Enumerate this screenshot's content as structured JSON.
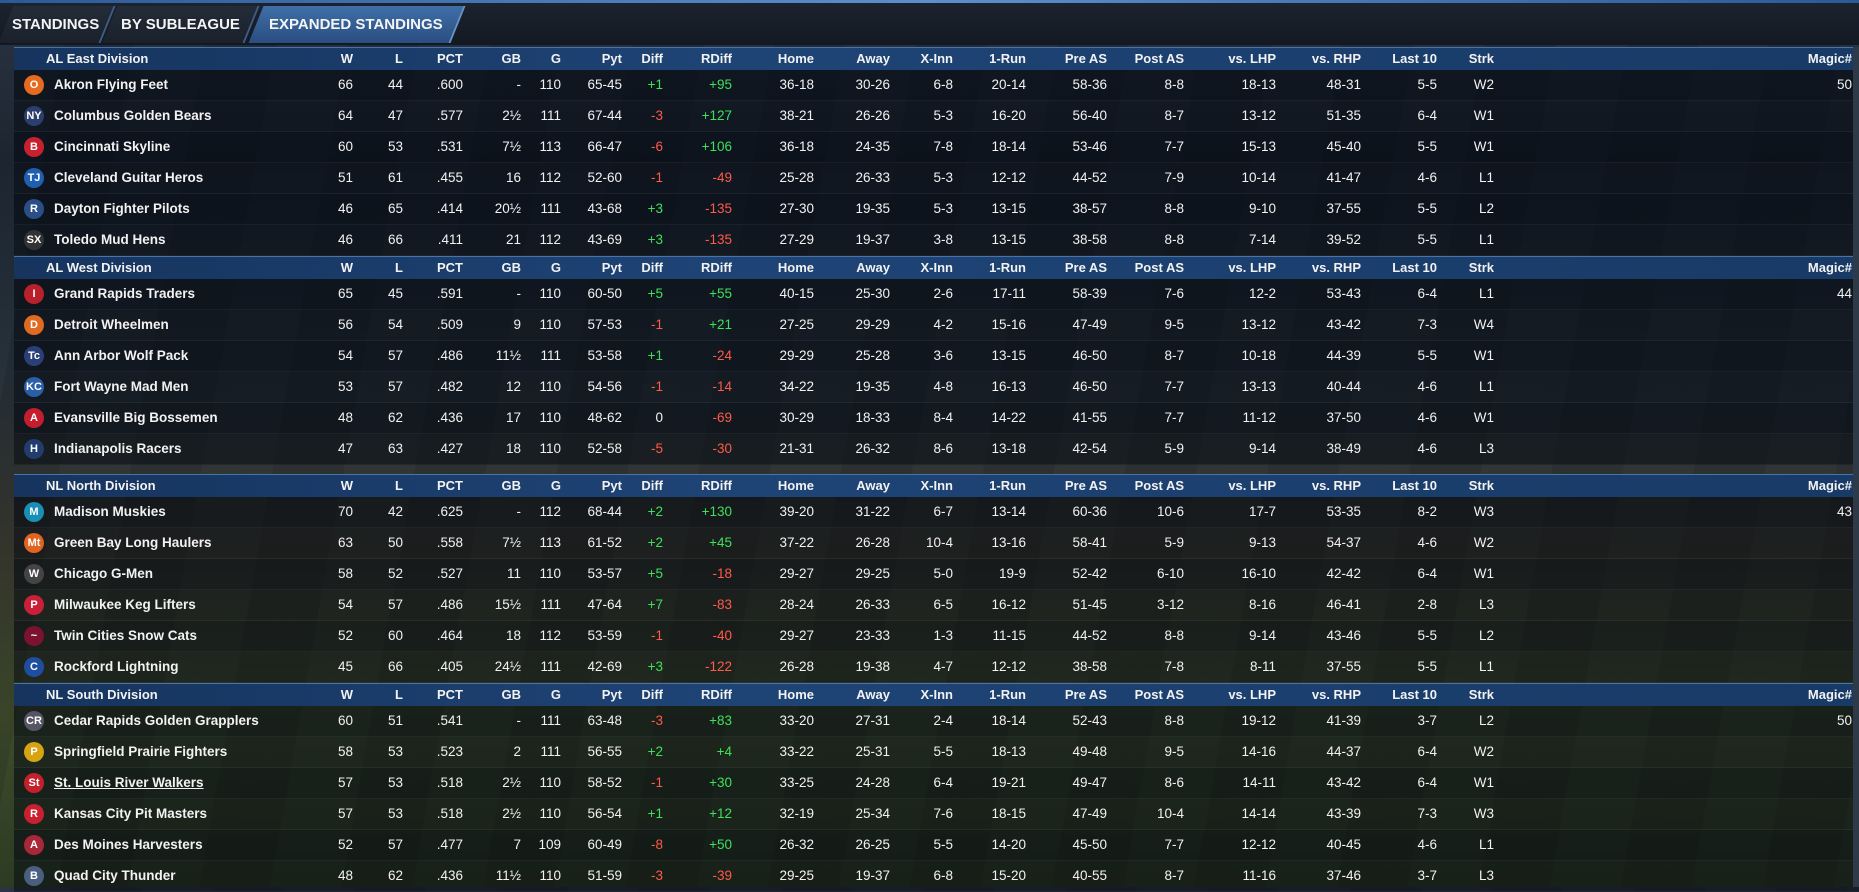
{
  "tabs": [
    "STANDINGS",
    "BY SUBLEAGUE",
    "EXPANDED STANDINGS"
  ],
  "columns": [
    "W",
    "L",
    "PCT",
    "GB",
    "G",
    "Pyt",
    "Diff",
    "RDiff",
    "Home",
    "Away",
    "X-Inn",
    "1-Run",
    "Pre AS",
    "Post AS",
    "vs. LHP",
    "vs. RHP",
    "Last 10",
    "Strk",
    "Magic#"
  ],
  "divisions": [
    {
      "name": "AL East Division",
      "teams": [
        {
          "logo": "orioles-logo",
          "abbr": "O",
          "color": "#e66a1f",
          "name": "Akron  Flying Feet",
          "W": "66",
          "L": "44",
          "PCT": ".600",
          "GB": "-",
          "G": "110",
          "Pyt": "65-45",
          "Diff": "+1",
          "RDiff": "+95",
          "Home": "36-18",
          "Away": "30-26",
          "XInn": "6-8",
          "OneRun": "20-14",
          "PreAS": "58-36",
          "PostAS": "8-8",
          "vsLHP": "18-13",
          "vsRHP": "48-31",
          "Last10": "5-5",
          "Strk": "W2",
          "Magic": "50"
        },
        {
          "logo": "yankees-logo",
          "abbr": "NY",
          "color": "#2b3f6e",
          "name": "Columbus Golden Bears",
          "W": "64",
          "L": "47",
          "PCT": ".577",
          "GB": "2½",
          "G": "111",
          "Pyt": "67-44",
          "Diff": "-3",
          "RDiff": "+127",
          "Home": "38-21",
          "Away": "26-26",
          "XInn": "5-3",
          "OneRun": "16-20",
          "PreAS": "56-40",
          "PostAS": "8-7",
          "vsLHP": "13-12",
          "vsRHP": "51-35",
          "Last10": "6-4",
          "Strk": "W1",
          "Magic": ""
        },
        {
          "logo": "redsox-logo",
          "abbr": "B",
          "color": "#c8202e",
          "name": "Cincinnati Skyline",
          "W": "60",
          "L": "53",
          "PCT": ".531",
          "GB": "7½",
          "G": "113",
          "Pyt": "66-47",
          "Diff": "-6",
          "RDiff": "+106",
          "Home": "36-18",
          "Away": "24-35",
          "XInn": "7-8",
          "OneRun": "18-14",
          "PreAS": "53-46",
          "PostAS": "7-7",
          "vsLHP": "15-13",
          "vsRHP": "45-40",
          "Last10": "5-5",
          "Strk": "W1",
          "Magic": ""
        },
        {
          "logo": "bluejays-logo",
          "abbr": "TJ",
          "color": "#1f5fb0",
          "name": "Cleveland Guitar Heros",
          "W": "51",
          "L": "61",
          "PCT": ".455",
          "GB": "16",
          "G": "112",
          "Pyt": "52-60",
          "Diff": "-1",
          "RDiff": "-49",
          "Home": "25-28",
          "Away": "26-33",
          "XInn": "5-3",
          "OneRun": "12-12",
          "PreAS": "44-52",
          "PostAS": "7-9",
          "vsLHP": "10-14",
          "vsRHP": "41-47",
          "Last10": "4-6",
          "Strk": "L1",
          "Magic": ""
        },
        {
          "logo": "rays-logo",
          "abbr": "R",
          "color": "#2a4f86",
          "name": "Dayton Fighter Pilots",
          "W": "46",
          "L": "65",
          "PCT": ".414",
          "GB": "20½",
          "G": "111",
          "Pyt": "43-68",
          "Diff": "+3",
          "RDiff": "-135",
          "Home": "27-30",
          "Away": "19-35",
          "XInn": "5-3",
          "OneRun": "13-15",
          "PreAS": "38-57",
          "PostAS": "8-8",
          "vsLHP": "9-10",
          "vsRHP": "37-55",
          "Last10": "5-5",
          "Strk": "L2",
          "Magic": ""
        },
        {
          "logo": "whitesox-logo",
          "abbr": "SX",
          "color": "#333333",
          "name": "Toledo  Mud Hens",
          "W": "46",
          "L": "66",
          "PCT": ".411",
          "GB": "21",
          "G": "112",
          "Pyt": "43-69",
          "Diff": "+3",
          "RDiff": "-135",
          "Home": "27-29",
          "Away": "19-37",
          "XInn": "3-8",
          "OneRun": "13-15",
          "PreAS": "38-58",
          "PostAS": "8-8",
          "vsLHP": "7-14",
          "vsRHP": "39-52",
          "Last10": "5-5",
          "Strk": "L1",
          "Magic": ""
        }
      ]
    },
    {
      "name": "AL West Division",
      "teams": [
        {
          "logo": "indians-logo",
          "abbr": "I",
          "color": "#b8202c",
          "name": "Grand Rapids Traders",
          "W": "65",
          "L": "45",
          "PCT": ".591",
          "GB": "-",
          "G": "110",
          "Pyt": "60-50",
          "Diff": "+5",
          "RDiff": "+55",
          "Home": "40-15",
          "Away": "25-30",
          "XInn": "2-6",
          "OneRun": "17-11",
          "PreAS": "58-39",
          "PostAS": "7-6",
          "vsLHP": "12-2",
          "vsRHP": "53-43",
          "Last10": "6-4",
          "Strk": "L1",
          "Magic": "44"
        },
        {
          "logo": "tigers-logo",
          "abbr": "D",
          "color": "#e06a20",
          "name": "Detroit Wheelmen",
          "W": "56",
          "L": "54",
          "PCT": ".509",
          "GB": "9",
          "G": "110",
          "Pyt": "57-53",
          "Diff": "-1",
          "RDiff": "+21",
          "Home": "27-25",
          "Away": "29-29",
          "XInn": "4-2",
          "OneRun": "15-16",
          "PreAS": "47-49",
          "PostAS": "9-5",
          "vsLHP": "13-12",
          "vsRHP": "43-42",
          "Last10": "7-3",
          "Strk": "W4",
          "Magic": ""
        },
        {
          "logo": "twins-logo",
          "abbr": "Tc",
          "color": "#2a3f77",
          "name": "Ann Arbor Wolf Pack",
          "W": "54",
          "L": "57",
          "PCT": ".486",
          "GB": "11½",
          "G": "111",
          "Pyt": "53-58",
          "Diff": "+1",
          "RDiff": "-24",
          "Home": "29-29",
          "Away": "25-28",
          "XInn": "3-6",
          "OneRun": "13-15",
          "PreAS": "46-50",
          "PostAS": "8-7",
          "vsLHP": "10-18",
          "vsRHP": "44-39",
          "Last10": "5-5",
          "Strk": "W1",
          "Magic": ""
        },
        {
          "logo": "royals-logo",
          "abbr": "KC",
          "color": "#2a5ea8",
          "name": "Fort Wayne Mad Men",
          "W": "53",
          "L": "57",
          "PCT": ".482",
          "GB": "12",
          "G": "110",
          "Pyt": "54-56",
          "Diff": "-1",
          "RDiff": "-14",
          "Home": "34-22",
          "Away": "19-35",
          "XInn": "4-8",
          "OneRun": "16-13",
          "PreAS": "46-50",
          "PostAS": "7-7",
          "vsLHP": "13-13",
          "vsRHP": "40-44",
          "Last10": "4-6",
          "Strk": "L1",
          "Magic": ""
        },
        {
          "logo": "angels-logo",
          "abbr": "A",
          "color": "#c41e2e",
          "name": "Evansville Big Bossemen",
          "W": "48",
          "L": "62",
          "PCT": ".436",
          "GB": "17",
          "G": "110",
          "Pyt": "48-62",
          "Diff": "0",
          "RDiff": "-69",
          "Home": "30-29",
          "Away": "18-33",
          "XInn": "8-4",
          "OneRun": "14-22",
          "PreAS": "41-55",
          "PostAS": "7-7",
          "vsLHP": "11-12",
          "vsRHP": "37-50",
          "Last10": "4-6",
          "Strk": "W1",
          "Magic": ""
        },
        {
          "logo": "astros-logo",
          "abbr": "H",
          "color": "#203d6e",
          "name": "Indianapolis Racers",
          "W": "47",
          "L": "63",
          "PCT": ".427",
          "GB": "18",
          "G": "110",
          "Pyt": "52-58",
          "Diff": "-5",
          "RDiff": "-30",
          "Home": "21-31",
          "Away": "26-32",
          "XInn": "8-6",
          "OneRun": "13-18",
          "PreAS": "42-54",
          "PostAS": "5-9",
          "vsLHP": "9-14",
          "vsRHP": "38-49",
          "Last10": "4-6",
          "Strk": "L3",
          "Magic": ""
        }
      ]
    },
    {
      "name": "NL North Division",
      "teams": [
        {
          "logo": "marlins-logo",
          "abbr": "M",
          "color": "#1a8fb5",
          "name": "Madison Muskies",
          "W": "70",
          "L": "42",
          "PCT": ".625",
          "GB": "-",
          "G": "112",
          "Pyt": "68-44",
          "Diff": "+2",
          "RDiff": "+130",
          "Home": "39-20",
          "Away": "31-22",
          "XInn": "6-7",
          "OneRun": "13-14",
          "PreAS": "60-36",
          "PostAS": "10-6",
          "vsLHP": "17-7",
          "vsRHP": "53-35",
          "Last10": "8-2",
          "Strk": "W3",
          "Magic": "43"
        },
        {
          "logo": "mets-logo",
          "abbr": "Mt",
          "color": "#e0631f",
          "name": "Green Bay  Long Haulers",
          "W": "63",
          "L": "50",
          "PCT": ".558",
          "GB": "7½",
          "G": "113",
          "Pyt": "61-52",
          "Diff": "+2",
          "RDiff": "+45",
          "Home": "37-22",
          "Away": "26-28",
          "XInn": "10-4",
          "OneRun": "13-16",
          "PreAS": "58-41",
          "PostAS": "5-9",
          "vsLHP": "9-13",
          "vsRHP": "54-37",
          "Last10": "4-6",
          "Strk": "W2",
          "Magic": ""
        },
        {
          "logo": "nationals-logo",
          "abbr": "W",
          "color": "#444444",
          "name": "Chicago G-Men",
          "W": "58",
          "L": "52",
          "PCT": ".527",
          "GB": "11",
          "G": "110",
          "Pyt": "53-57",
          "Diff": "+5",
          "RDiff": "-18",
          "Home": "29-27",
          "Away": "29-25",
          "XInn": "5-0",
          "OneRun": "19-9",
          "PreAS": "52-42",
          "PostAS": "6-10",
          "vsLHP": "16-10",
          "vsRHP": "42-42",
          "Last10": "6-4",
          "Strk": "W1",
          "Magic": ""
        },
        {
          "logo": "phillies-logo",
          "abbr": "P",
          "color": "#c82038",
          "name": "Milwaukee Keg Lifters",
          "W": "54",
          "L": "57",
          "PCT": ".486",
          "GB": "15½",
          "G": "111",
          "Pyt": "47-64",
          "Diff": "+7",
          "RDiff": "-83",
          "Home": "28-24",
          "Away": "26-33",
          "XInn": "6-5",
          "OneRun": "16-12",
          "PreAS": "51-45",
          "PostAS": "3-12",
          "vsLHP": "8-16",
          "vsRHP": "46-41",
          "Last10": "2-8",
          "Strk": "L3",
          "Magic": ""
        },
        {
          "logo": "braves-logo",
          "abbr": "~",
          "color": "#7a1230",
          "name": "Twin Cities Snow Cats",
          "W": "52",
          "L": "60",
          "PCT": ".464",
          "GB": "18",
          "G": "112",
          "Pyt": "53-59",
          "Diff": "-1",
          "RDiff": "-40",
          "Home": "29-27",
          "Away": "23-33",
          "XInn": "1-3",
          "OneRun": "11-15",
          "PreAS": "44-52",
          "PostAS": "8-8",
          "vsLHP": "9-14",
          "vsRHP": "43-46",
          "Last10": "5-5",
          "Strk": "L2",
          "Magic": ""
        },
        {
          "logo": "cubs-logo",
          "abbr": "C",
          "color": "#1d4ea0",
          "name": "Rockford Lightning",
          "W": "45",
          "L": "66",
          "PCT": ".405",
          "GB": "24½",
          "G": "111",
          "Pyt": "42-69",
          "Diff": "+3",
          "RDiff": "-122",
          "Home": "26-28",
          "Away": "19-38",
          "XInn": "4-7",
          "OneRun": "12-12",
          "PreAS": "38-58",
          "PostAS": "7-8",
          "vsLHP": "8-11",
          "vsRHP": "37-55",
          "Last10": "5-5",
          "Strk": "L1",
          "Magic": ""
        }
      ]
    },
    {
      "name": "NL South Division",
      "teams": [
        {
          "logo": "rockies-logo",
          "abbr": "CR",
          "color": "#555566",
          "name": "Cedar Rapids Golden Grapplers",
          "W": "60",
          "L": "51",
          "PCT": ".541",
          "GB": "-",
          "G": "111",
          "Pyt": "63-48",
          "Diff": "-3",
          "RDiff": "+83",
          "Home": "33-20",
          "Away": "27-31",
          "XInn": "2-4",
          "OneRun": "18-14",
          "PreAS": "52-43",
          "PostAS": "8-8",
          "vsLHP": "19-12",
          "vsRHP": "41-39",
          "Last10": "3-7",
          "Strk": "L2",
          "Magic": "50"
        },
        {
          "logo": "pirates-logo",
          "abbr": "P",
          "color": "#d7a312",
          "name": "Springfield Prairie Fighters",
          "W": "58",
          "L": "53",
          "PCT": ".523",
          "GB": "2",
          "G": "111",
          "Pyt": "56-55",
          "Diff": "+2",
          "RDiff": "+4",
          "Home": "33-22",
          "Away": "25-31",
          "XInn": "5-5",
          "OneRun": "18-13",
          "PreAS": "49-48",
          "PostAS": "9-5",
          "vsLHP": "14-16",
          "vsRHP": "44-37",
          "Last10": "6-4",
          "Strk": "W2",
          "Magic": ""
        },
        {
          "logo": "cardinals-logo",
          "abbr": "St",
          "color": "#c4202c",
          "name": "St. Louis River Walkers",
          "W": "57",
          "L": "53",
          "PCT": ".518",
          "GB": "2½",
          "G": "110",
          "Pyt": "58-52",
          "Diff": "-1",
          "RDiff": "+30",
          "Home": "33-25",
          "Away": "24-28",
          "XInn": "6-4",
          "OneRun": "19-21",
          "PreAS": "49-47",
          "PostAS": "8-6",
          "vsLHP": "14-11",
          "vsRHP": "43-42",
          "Last10": "6-4",
          "Strk": "W1",
          "Magic": ""
        },
        {
          "logo": "reds-logo",
          "abbr": "R",
          "color": "#c8202e",
          "name": "Kansas City Pit Masters",
          "W": "57",
          "L": "53",
          "PCT": ".518",
          "GB": "2½",
          "G": "110",
          "Pyt": "56-54",
          "Diff": "+1",
          "RDiff": "+12",
          "Home": "32-19",
          "Away": "25-34",
          "XInn": "7-6",
          "OneRun": "18-15",
          "PreAS": "47-49",
          "PostAS": "10-4",
          "vsLHP": "14-14",
          "vsRHP": "43-39",
          "Last10": "7-3",
          "Strk": "W3",
          "Magic": ""
        },
        {
          "logo": "diamondbacks-logo",
          "abbr": "A",
          "color": "#a8283a",
          "name": "Des Moines  Harvesters",
          "W": "52",
          "L": "57",
          "PCT": ".477",
          "GB": "7",
          "G": "109",
          "Pyt": "60-49",
          "Diff": "-8",
          "RDiff": "+50",
          "Home": "26-32",
          "Away": "26-25",
          "XInn": "5-5",
          "OneRun": "14-20",
          "PreAS": "45-50",
          "PostAS": "7-7",
          "vsLHP": "12-12",
          "vsRHP": "40-45",
          "Last10": "4-6",
          "Strk": "L1",
          "Magic": ""
        },
        {
          "logo": "brewers-logo",
          "abbr": "B",
          "color": "#4a5e80",
          "name": "Quad City Thunder",
          "W": "48",
          "L": "62",
          "PCT": ".436",
          "GB": "11½",
          "G": "110",
          "Pyt": "51-59",
          "Diff": "-3",
          "RDiff": "-39",
          "Home": "29-25",
          "Away": "19-37",
          "XInn": "6-8",
          "OneRun": "15-20",
          "PreAS": "40-55",
          "PostAS": "8-7",
          "vsLHP": "11-16",
          "vsRHP": "37-46",
          "Last10": "3-7",
          "Strk": "L3",
          "Magic": ""
        }
      ]
    }
  ],
  "colors": {
    "tab_active": "#2a4e80",
    "division_header": "#1e4476",
    "positive": "#3fe05a",
    "negative": "#ff5a4a"
  }
}
